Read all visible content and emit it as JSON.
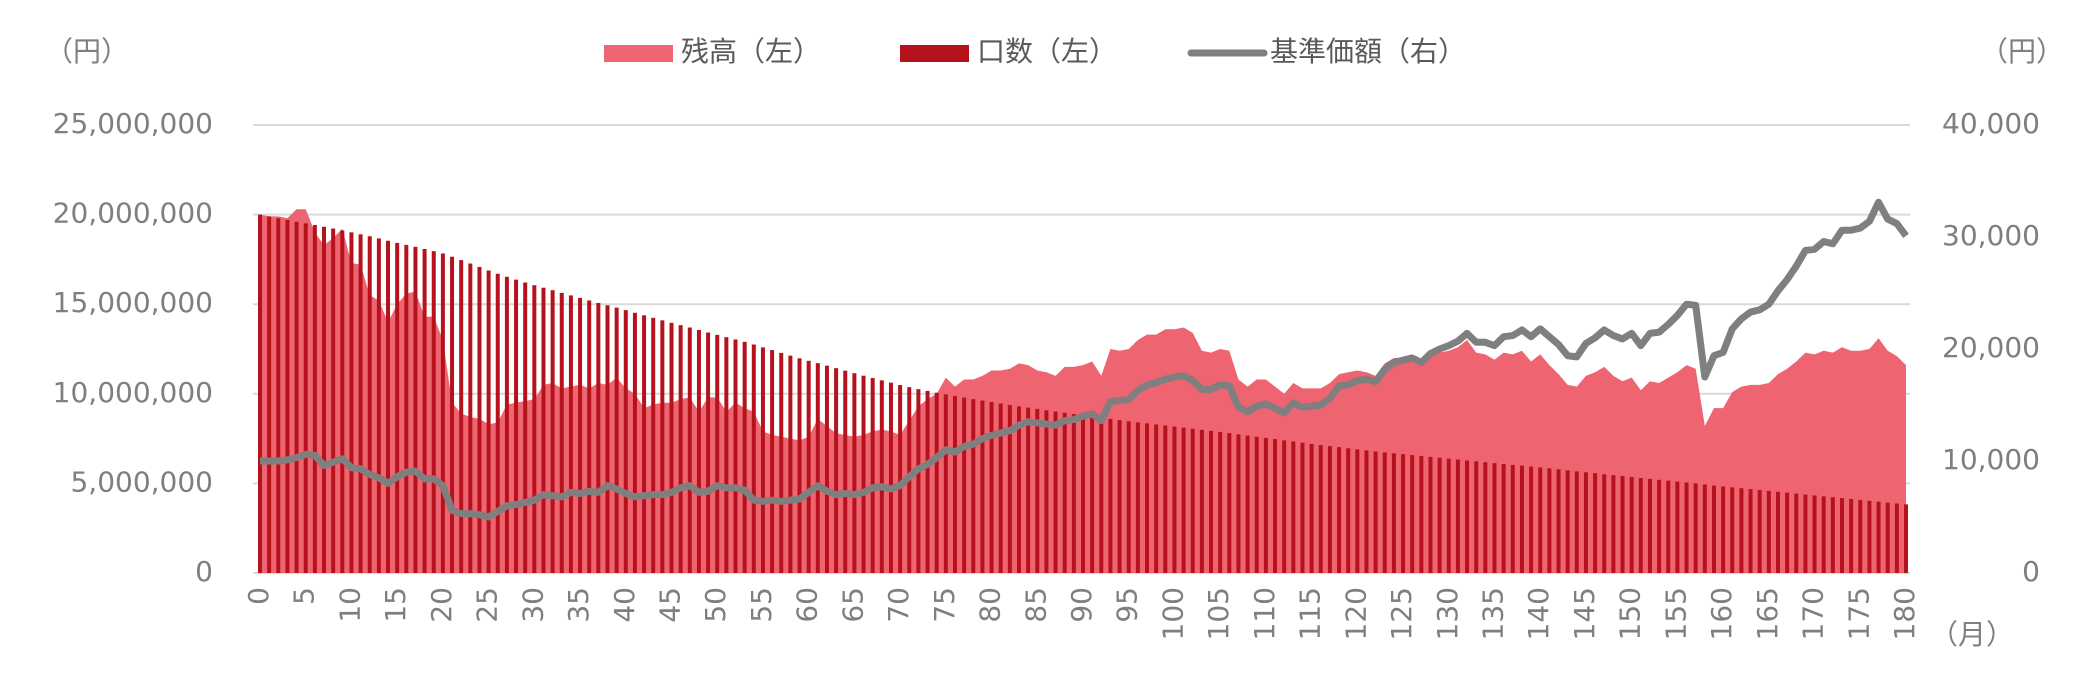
{
  "chart_data": {
    "type": "combo",
    "y_unit_left": "（円）",
    "y_unit_right": "（円）",
    "x_unit": "（月）",
    "x": [
      0,
      1,
      2,
      3,
      4,
      5,
      6,
      7,
      8,
      9,
      10,
      11,
      12,
      13,
      14,
      15,
      16,
      17,
      18,
      19,
      20,
      21,
      22,
      23,
      24,
      25,
      26,
      27,
      28,
      29,
      30,
      31,
      32,
      33,
      34,
      35,
      36,
      37,
      38,
      39,
      40,
      41,
      42,
      43,
      44,
      45,
      46,
      47,
      48,
      49,
      50,
      51,
      52,
      53,
      54,
      55,
      56,
      57,
      58,
      59,
      60,
      61,
      62,
      63,
      64,
      65,
      66,
      67,
      68,
      69,
      70,
      71,
      72,
      73,
      74,
      75,
      76,
      77,
      78,
      79,
      80,
      81,
      82,
      83,
      84,
      85,
      86,
      87,
      88,
      89,
      90,
      91,
      92,
      93,
      94,
      95,
      96,
      97,
      98,
      99,
      100,
      101,
      102,
      103,
      104,
      105,
      106,
      107,
      108,
      109,
      110,
      111,
      112,
      113,
      114,
      115,
      116,
      117,
      118,
      119,
      120,
      121,
      122,
      123,
      124,
      125,
      126,
      127,
      128,
      129,
      130,
      131,
      132,
      133,
      134,
      135,
      136,
      137,
      138,
      139,
      140,
      141,
      142,
      143,
      144,
      145,
      146,
      147,
      148,
      149,
      150,
      151,
      152,
      153,
      154,
      155,
      156,
      157,
      158,
      159,
      160,
      161,
      162,
      163,
      164,
      165,
      166,
      167,
      168,
      169,
      170,
      171,
      172,
      173,
      174,
      175,
      176,
      177,
      178,
      179,
      180
    ],
    "xlim": [
      0,
      180
    ],
    "xticks": [
      0,
      5,
      10,
      15,
      20,
      25,
      30,
      35,
      40,
      45,
      50,
      55,
      60,
      65,
      70,
      75,
      80,
      85,
      90,
      95,
      100,
      105,
      110,
      115,
      120,
      125,
      130,
      135,
      140,
      145,
      150,
      155,
      160,
      165,
      170,
      175,
      180
    ],
    "ylim": [
      0,
      25000000
    ],
    "yticks": [
      0,
      {
        "value": 5000000,
        "label": "5,000,000"
      },
      {
        "value": 10000000,
        "label": "10,000,000"
      },
      {
        "value": 15000000,
        "label": "15,000,000"
      },
      {
        "value": 20000000,
        "label": "20,000,000"
      },
      {
        "value": 25000000,
        "label": "25,000,000"
      }
    ],
    "y2lim": [
      0,
      40000
    ],
    "y2ticks": [
      0,
      {
        "value": 10000,
        "label": "10,000"
      },
      {
        "value": 20000,
        "label": "20,000"
      },
      {
        "value": 30000,
        "label": "30,000"
      },
      {
        "value": 40000,
        "label": "40,000"
      }
    ],
    "grid": true,
    "legend": "top",
    "series": [
      {
        "name": "残高（左）",
        "type": "area",
        "color": "#ee6470",
        "values": [
          20000000,
          19900000,
          19900000,
          19800000,
          20300000,
          20300000,
          19000000,
          18300000,
          18700000,
          19200000,
          17300000,
          17200000,
          15500000,
          15200000,
          14000000,
          15000000,
          15600000,
          15700000,
          14300000,
          14300000,
          13000000,
          9500000,
          8900000,
          8700000,
          8600000,
          8300000,
          8400000,
          9400000,
          9500000,
          9600000,
          9700000,
          10500000,
          10600000,
          10300000,
          10400000,
          10500000,
          10300000,
          10600000,
          10500000,
          10900000,
          10300000,
          10000000,
          9200000,
          9400000,
          9500000,
          9500000,
          9700000,
          9800000,
          9000000,
          9800000,
          9800000,
          9000000,
          9500000,
          9200000,
          9000000,
          7900000,
          7700000,
          7600000,
          7500000,
          7400000,
          7600000,
          8600000,
          8200000,
          7800000,
          7700000,
          7600000,
          7700000,
          7900000,
          8000000,
          7900000,
          7700000,
          8500000,
          9300000,
          9700000,
          10000000,
          10900000,
          10400000,
          10800000,
          10800000,
          11000000,
          11300000,
          11300000,
          11400000,
          11700000,
          11600000,
          11300000,
          11200000,
          11000000,
          11500000,
          11500000,
          11600000,
          11800000,
          11000000,
          12500000,
          12400000,
          12500000,
          13000000,
          13300000,
          13300000,
          13600000,
          13600000,
          13700000,
          13400000,
          12400000,
          12300000,
          12500000,
          12400000,
          10800000,
          10400000,
          10800000,
          10800000,
          10400000,
          10000000,
          10600000,
          10300000,
          10300000,
          10300000,
          10600000,
          11100000,
          11200000,
          11300000,
          11200000,
          11000000,
          11700000,
          12000000,
          12000000,
          12100000,
          11800000,
          12200000,
          12300000,
          12400000,
          12600000,
          13000000,
          12300000,
          12200000,
          11900000,
          12300000,
          12200000,
          12400000,
          11800000,
          12200000,
          11600000,
          11100000,
          10500000,
          10400000,
          11000000,
          11200000,
          11500000,
          11000000,
          10700000,
          10900000,
          10200000,
          10700000,
          10600000,
          10900000,
          11200000,
          11600000,
          11400000,
          8200000,
          9200000,
          9200000,
          10100000,
          10400000,
          10500000,
          10500000,
          10600000,
          11100000,
          11400000,
          11800000,
          12300000,
          12200000,
          12400000,
          12300000,
          12600000,
          12400000,
          12400000,
          12500000,
          13100000,
          12400000,
          12100000,
          11600000
        ]
      },
      {
        "name": "口数（左）",
        "type": "bar",
        "color": "#b5121b",
        "values": [
          20000000,
          19900000,
          19800000,
          19700000,
          19600000,
          19510000,
          19420000,
          19320000,
          19220000,
          19120000,
          19010000,
          18900000,
          18790000,
          18670000,
          18540000,
          18420000,
          18310000,
          18200000,
          18080000,
          17960000,
          17830000,
          17650000,
          17460000,
          17270000,
          17080000,
          16880000,
          16700000,
          16530000,
          16370000,
          16210000,
          16060000,
          15920000,
          15780000,
          15630000,
          15490000,
          15350000,
          15210000,
          15070000,
          14940000,
          14810000,
          14670000,
          14520000,
          14380000,
          14240000,
          14100000,
          13960000,
          13830000,
          13700000,
          13560000,
          13420000,
          13290000,
          13160000,
          13030000,
          12900000,
          12750000,
          12590000,
          12440000,
          12280000,
          12130000,
          11980000,
          11840000,
          11710000,
          11570000,
          11430000,
          11290000,
          11150000,
          11010000,
          10880000,
          10750000,
          10620000,
          10490000,
          10370000,
          10260000,
          10160000,
          10060000,
          9970000,
          9880000,
          9790000,
          9700000,
          9620000,
          9540000,
          9460000,
          9380000,
          9300000,
          9230000,
          9160000,
          9080000,
          9010000,
          8940000,
          8870000,
          8800000,
          8730000,
          8660000,
          8600000,
          8530000,
          8470000,
          8410000,
          8350000,
          8290000,
          8230000,
          8170000,
          8110000,
          8050000,
          7990000,
          7930000,
          7870000,
          7810000,
          7740000,
          7670000,
          7600000,
          7540000,
          7470000,
          7400000,
          7340000,
          7270000,
          7200000,
          7140000,
          7080000,
          7020000,
          6960000,
          6900000,
          6840000,
          6780000,
          6730000,
          6680000,
          6630000,
          6580000,
          6530000,
          6480000,
          6430000,
          6380000,
          6330000,
          6280000,
          6230000,
          6180000,
          6130000,
          6080000,
          6030000,
          5990000,
          5940000,
          5890000,
          5840000,
          5790000,
          5730000,
          5670000,
          5620000,
          5570000,
          5510000,
          5460000,
          5410000,
          5360000,
          5300000,
          5250000,
          5200000,
          5150000,
          5100000,
          5050000,
          5000000,
          4940000,
          4880000,
          4830000,
          4780000,
          4730000,
          4680000,
          4630000,
          4580000,
          4530000,
          4480000,
          4430000,
          4380000,
          4330000,
          4280000,
          4230000,
          4180000,
          4130000,
          4080000,
          4030000,
          3980000,
          3930000,
          3880000,
          3830000
        ]
      },
      {
        "name": "基準価額（右）",
        "type": "line",
        "axis": "y2",
        "color": "#7f7f7f",
        "values": [
          10000,
          10000,
          10000,
          10100,
          10300,
          10600,
          10500,
          9600,
          9900,
          10200,
          9400,
          9300,
          8800,
          8500,
          8000,
          8600,
          9000,
          9100,
          8400,
          8400,
          7800,
          5600,
          5300,
          5300,
          5200,
          5000,
          5500,
          6000,
          6100,
          6300,
          6500,
          7000,
          6900,
          6800,
          7200,
          7100,
          7300,
          7200,
          7800,
          7500,
          7100,
          6800,
          6900,
          7000,
          7000,
          7200,
          7600,
          7800,
          7200,
          7300,
          7800,
          7600,
          7600,
          7400,
          6500,
          6400,
          6500,
          6400,
          6500,
          6600,
          7200,
          7800,
          7300,
          7000,
          7100,
          7000,
          7200,
          7600,
          7700,
          7500,
          7800,
          8600,
          9300,
          9700,
          10300,
          11000,
          10800,
          11300,
          11500,
          12000,
          12300,
          12500,
          12700,
          13200,
          13500,
          13400,
          13300,
          13200,
          13600,
          13700,
          14000,
          14200,
          13600,
          15300,
          15400,
          15500,
          16300,
          16800,
          17000,
          17300,
          17500,
          17600,
          17200,
          16400,
          16400,
          16800,
          16700,
          14800,
          14400,
          14900,
          15100,
          14700,
          14300,
          15200,
          14800,
          14900,
          15000,
          15600,
          16700,
          16800,
          17200,
          17300,
          17100,
          18200,
          18800,
          19000,
          19200,
          18800,
          19600,
          20000,
          20300,
          20700,
          21400,
          20600,
          20600,
          20300,
          21100,
          21200,
          21700,
          21100,
          21800,
          21100,
          20400,
          19400,
          19300,
          20500,
          21000,
          21700,
          21200,
          20900,
          21400,
          20300,
          21400,
          21500,
          22200,
          23000,
          24000,
          23900,
          17500,
          19400,
          19700,
          21800,
          22700,
          23300,
          23500,
          24000,
          25200,
          26200,
          27400,
          28800,
          28900,
          29600,
          29400,
          30600,
          30600,
          30800,
          31400,
          33100,
          31600,
          31200,
          30100
        ]
      }
    ]
  }
}
